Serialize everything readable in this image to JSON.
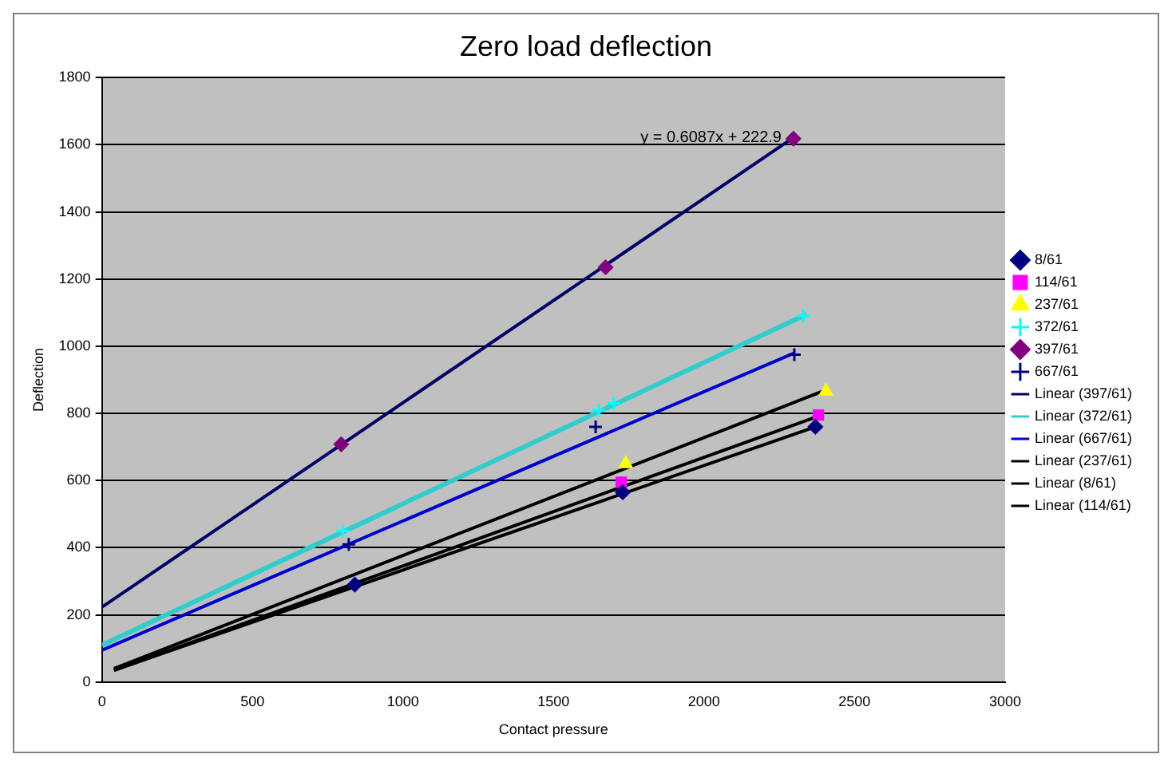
{
  "chart_data": {
    "type": "scatter",
    "title": "Zero load deflection",
    "xlabel": "Contact pressure",
    "ylabel": "Deflection",
    "xlim": [
      0,
      3000
    ],
    "xticks": [
      0,
      500,
      1000,
      1500,
      2000,
      2500,
      3000
    ],
    "ylim": [
      0,
      1800
    ],
    "yticks": [
      0,
      200,
      400,
      600,
      800,
      1000,
      1200,
      1400,
      1600,
      1800
    ],
    "grid": "y",
    "legend": "right",
    "annotations": [
      {
        "text": "y = 0.6087x + 222.9",
        "x": 2300,
        "y": 1620
      }
    ],
    "series": [
      {
        "name": "8/61",
        "type": "scatter",
        "marker": "diamond",
        "color": "#000080",
        "x": [
          840,
          1730,
          2370
        ],
        "values": [
          290,
          565,
          760
        ]
      },
      {
        "name": "114/61",
        "type": "scatter",
        "marker": "square",
        "color": "#ff00ff",
        "x": [
          1725,
          2380
        ],
        "values": [
          595,
          795
        ]
      },
      {
        "name": "237/61",
        "type": "scatter",
        "marker": "triangle",
        "color": "#ffff00",
        "x": [
          1740,
          2405
        ],
        "values": [
          650,
          866
        ]
      },
      {
        "name": "372/61",
        "type": "scatter",
        "marker": "cross",
        "color": "#00ffff",
        "x": [
          800,
          1650,
          1700,
          2330
        ],
        "values": [
          450,
          810,
          830,
          1090
        ]
      },
      {
        "name": "397/61",
        "type": "scatter",
        "marker": "diamond",
        "color": "#800080",
        "x": [
          795,
          1673,
          2297
        ],
        "values": [
          708,
          1235,
          1618
        ]
      },
      {
        "name": "667/61",
        "type": "scatter",
        "marker": "cross",
        "color": "#000080",
        "x": [
          820,
          1640,
          2300
        ],
        "values": [
          410,
          760,
          975
        ]
      },
      {
        "name": "Linear (397/61)",
        "type": "line",
        "marker": "none",
        "color": "#000066",
        "x": [
          0,
          2300
        ],
        "values": [
          223,
          1623
        ]
      },
      {
        "name": "Linear (372/61)",
        "type": "line",
        "marker": "none",
        "color": "#33cccc",
        "x": [
          0,
          2340
        ],
        "values": [
          110,
          1095
        ]
      },
      {
        "name": "Linear (667/61)",
        "type": "line",
        "marker": "none",
        "color": "#0000cc",
        "x": [
          0,
          2300
        ],
        "values": [
          95,
          980
        ]
      },
      {
        "name": "Linear (237/61)",
        "type": "line",
        "marker": "none",
        "color": "#000000",
        "x": [
          40,
          2400
        ],
        "values": [
          40,
          868
        ]
      },
      {
        "name": "Linear (8/61)",
        "type": "line",
        "marker": "none",
        "color": "#000000",
        "x": [
          40,
          2370
        ],
        "values": [
          35,
          760
        ]
      },
      {
        "name": "Linear (114/61)",
        "type": "line",
        "marker": "none",
        "color": "#000000",
        "x": [
          40,
          2380
        ],
        "values": [
          35,
          792
        ]
      }
    ]
  }
}
